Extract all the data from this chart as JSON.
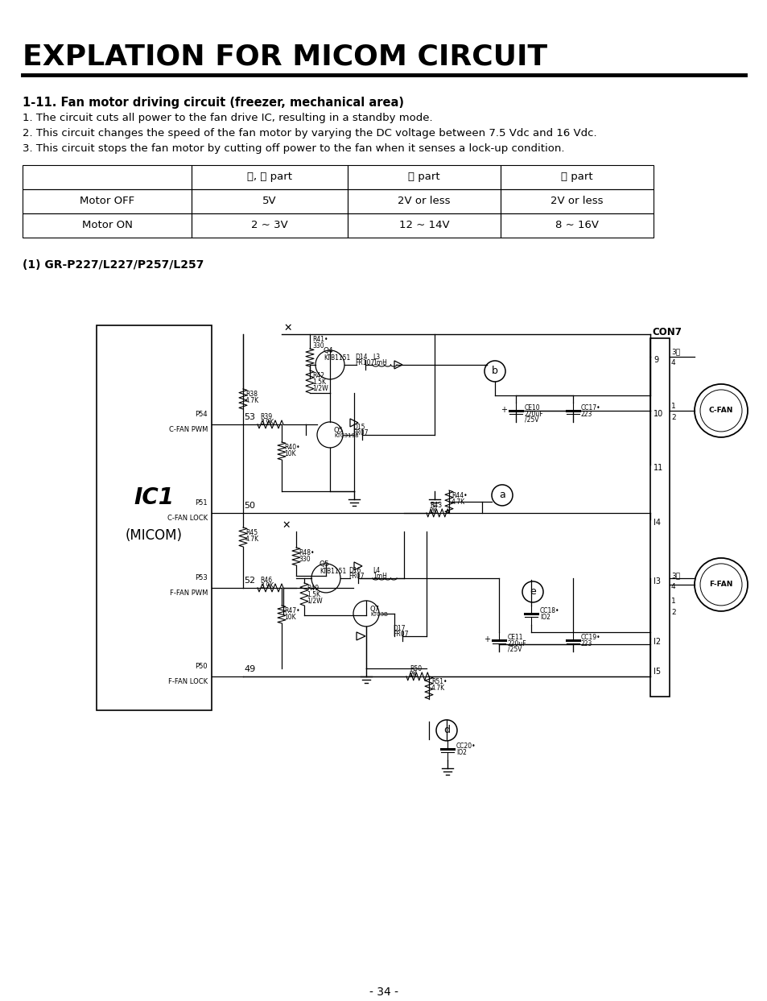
{
  "title": "EXPLATION FOR MICOM CIRCUIT",
  "section": "1-11. Fan motor driving circuit (freezer, mechanical area)",
  "bullets": [
    "1. The circuit cuts all power to the fan drive IC, resulting in a standby mode.",
    "2. This circuit changes the speed of the fan motor by varying the DC voltage between 7.5 Vdc and 16 Vdc.",
    "3. This circuit stops the fan motor by cutting off power to the fan when it senses a lock-up condition."
  ],
  "table_col0": [
    "",
    "Motor OFF",
    "Motor ON"
  ],
  "table_col1": [
    "ⓐ, ⓓ part",
    "5V",
    "2 ~ 3V"
  ],
  "table_col2": [
    "ⓑ part",
    "2V or less",
    "12 ~ 14V"
  ],
  "table_col3": [
    "ⓔ part",
    "2V or less",
    "8 ~ 16V"
  ],
  "subsection": "(1) GR-P227/L227/P257/L257",
  "page_number": "- 34 -",
  "bg_color": "#ffffff",
  "text_color": "#000000"
}
